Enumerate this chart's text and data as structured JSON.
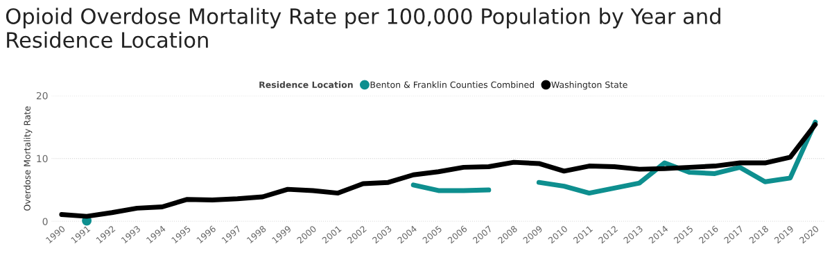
{
  "chart_data": {
    "type": "line",
    "title": "Opioid Overdose Mortality Rate per 100,000 Population by Year and Residence Location",
    "categories": [
      "1990",
      "1991",
      "1992",
      "1993",
      "1994",
      "1995",
      "1996",
      "1997",
      "1998",
      "1999",
      "2000",
      "2001",
      "2002",
      "2003",
      "2004",
      "2005",
      "2006",
      "2007",
      "2008",
      "2009",
      "2010",
      "2011",
      "2012",
      "2013",
      "2014",
      "2015",
      "2016",
      "2017",
      "2018",
      "2019",
      "2020"
    ],
    "series": [
      {
        "name": "Benton & Franklin Counties Combined",
        "color": "#0e8f8f",
        "values": [
          null,
          0.1,
          null,
          null,
          null,
          null,
          null,
          null,
          null,
          null,
          null,
          null,
          null,
          null,
          5.8,
          4.9,
          4.9,
          5.0,
          null,
          6.2,
          5.6,
          4.5,
          5.3,
          6.1,
          9.3,
          7.8,
          7.6,
          8.6,
          6.3,
          6.9,
          15.8
        ]
      },
      {
        "name": "Washington State",
        "color": "#000000",
        "values": [
          1.1,
          0.8,
          1.4,
          2.1,
          2.3,
          3.5,
          3.4,
          3.6,
          3.9,
          5.1,
          4.9,
          4.5,
          6.0,
          6.2,
          7.4,
          7.9,
          8.6,
          8.7,
          9.4,
          9.2,
          8.0,
          8.8,
          8.7,
          8.3,
          8.4,
          8.6,
          8.8,
          9.3,
          9.3,
          10.2,
          15.4
        ]
      }
    ],
    "ylabel": "Overdose Mortality Rate",
    "legend_title": "Residence Location",
    "legend": "top",
    "ylim": [
      0,
      20
    ],
    "yticks": [
      0,
      10,
      20
    ],
    "grid": "y",
    "marker": "none",
    "line_style": "solid"
  }
}
